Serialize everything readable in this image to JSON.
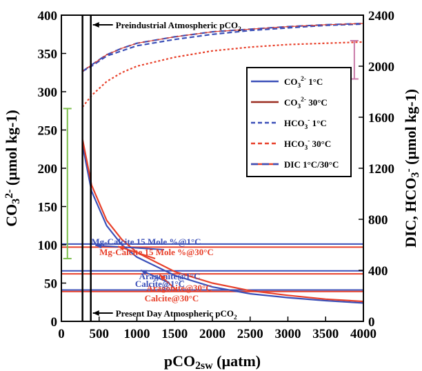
{
  "chart_data": {
    "type": "line",
    "xlabel": "pCO2sw (µatm)",
    "ylabel_left": "CO32- (µmol kg-1)",
    "ylabel_right": "DIC, HCO3- (µmol kg-1)",
    "xlim": [
      0,
      4000
    ],
    "ylim_left": [
      0,
      400
    ],
    "ylim_right": [
      0,
      2400
    ],
    "x_ticks": [
      "0",
      "500",
      "1000",
      "1500",
      "2000",
      "2500",
      "3000",
      "3500",
      "4000"
    ],
    "y_ticks_left": [
      "0",
      "50",
      "100",
      "150",
      "200",
      "250",
      "300",
      "350",
      "400"
    ],
    "y_ticks_right": [
      "0",
      "400",
      "800",
      "1200",
      "1600",
      "2000",
      "2400"
    ],
    "colors": {
      "blue": "#3a4fb8",
      "red": "#e8402a",
      "green": "#7dbf4e",
      "pink": "#c87aa8"
    },
    "legend": {
      "position": "top-right",
      "entries": [
        {
          "label": "CO32- 1°C",
          "color": "#3a4fb8",
          "dash": "solid"
        },
        {
          "label": "CO32- 30°C",
          "color": "#9a2a1e",
          "dash": "solid"
        },
        {
          "label": "HCO3- 1°C",
          "color": "#3a4fb8",
          "dash": "dashed"
        },
        {
          "label": "HCO3- 30°C",
          "color": "#e8402a",
          "dash": "dashed"
        },
        {
          "label": "DIC 1°C/30°C",
          "color": "#3a4fb8",
          "dash": "solid-red"
        }
      ]
    },
    "series": [
      {
        "name": "CO32- 1°C",
        "axis": "left",
        "color": "#3a4fb8",
        "x": [
          280,
          400,
          600,
          800,
          1000,
          1500,
          2000,
          2500,
          3000,
          3500,
          4000
        ],
        "y": [
          230,
          170,
          125,
          100,
          84,
          60,
          45,
          36,
          31,
          27,
          24
        ]
      },
      {
        "name": "CO32- 30°C",
        "axis": "left",
        "color": "#e8402a",
        "x": [
          280,
          400,
          600,
          800,
          1000,
          1500,
          2000,
          2500,
          3000,
          3500,
          4000
        ],
        "y": [
          238,
          178,
          132,
          107,
          90,
          65,
          50,
          40,
          34,
          29,
          26
        ]
      },
      {
        "name": "HCO3- 1°C",
        "axis": "right",
        "color": "#3a4fb8",
        "x": [
          280,
          400,
          600,
          800,
          1000,
          1500,
          2000,
          2500,
          3000,
          3500,
          4000
        ],
        "y": [
          1960,
          2000,
          2080,
          2120,
          2160,
          2210,
          2250,
          2280,
          2300,
          2320,
          2330
        ]
      },
      {
        "name": "HCO3- 30°C",
        "axis": "right",
        "color": "#e8402a",
        "x": [
          280,
          400,
          600,
          800,
          1000,
          1500,
          2000,
          2500,
          3000,
          3500,
          4000
        ],
        "y": [
          1680,
          1770,
          1880,
          1950,
          2000,
          2070,
          2120,
          2150,
          2170,
          2180,
          2190
        ]
      },
      {
        "name": "DIC 1°C/30°C",
        "axis": "right",
        "color": "#3a4fb8",
        "x": [
          280,
          400,
          600,
          800,
          1000,
          1500,
          2000,
          2500,
          3000,
          3500,
          4000
        ],
        "y": [
          1960,
          2010,
          2090,
          2140,
          2180,
          2230,
          2270,
          2290,
          2310,
          2325,
          2335
        ]
      }
    ],
    "error_bars": [
      {
        "axis": "left",
        "x": 80,
        "low": 82,
        "high": 278,
        "color": "#7dbf4e"
      },
      {
        "axis": "right",
        "x": 3880,
        "low": 1900,
        "high": 2200,
        "color": "#c87aa8"
      }
    ],
    "vertical_lines": [
      {
        "x": 280,
        "label": "Preindustrial Atmospheric pCO2"
      },
      {
        "x": 390,
        "label": "Present Day Atmospheric pCO2"
      }
    ],
    "saturation_lines": [
      {
        "label": "Mg-Calcite 15 Mole %@1°C",
        "y": 101,
        "color": "#3a4fb8"
      },
      {
        "label": "Mg-Calcite 15 Mole %@30°C",
        "y": 97,
        "color": "#e8402a"
      },
      {
        "label": "Aragonite@1°C",
        "y": 66,
        "color": "#3a4fb8"
      },
      {
        "label": "Aragonite@30°C",
        "y": 62,
        "color": "#e8402a"
      },
      {
        "label": "Calcite@1°C",
        "y": 41,
        "color": "#3a4fb8"
      },
      {
        "label": "Calcite@30°C",
        "y": 39,
        "color": "#e8402a"
      }
    ]
  }
}
